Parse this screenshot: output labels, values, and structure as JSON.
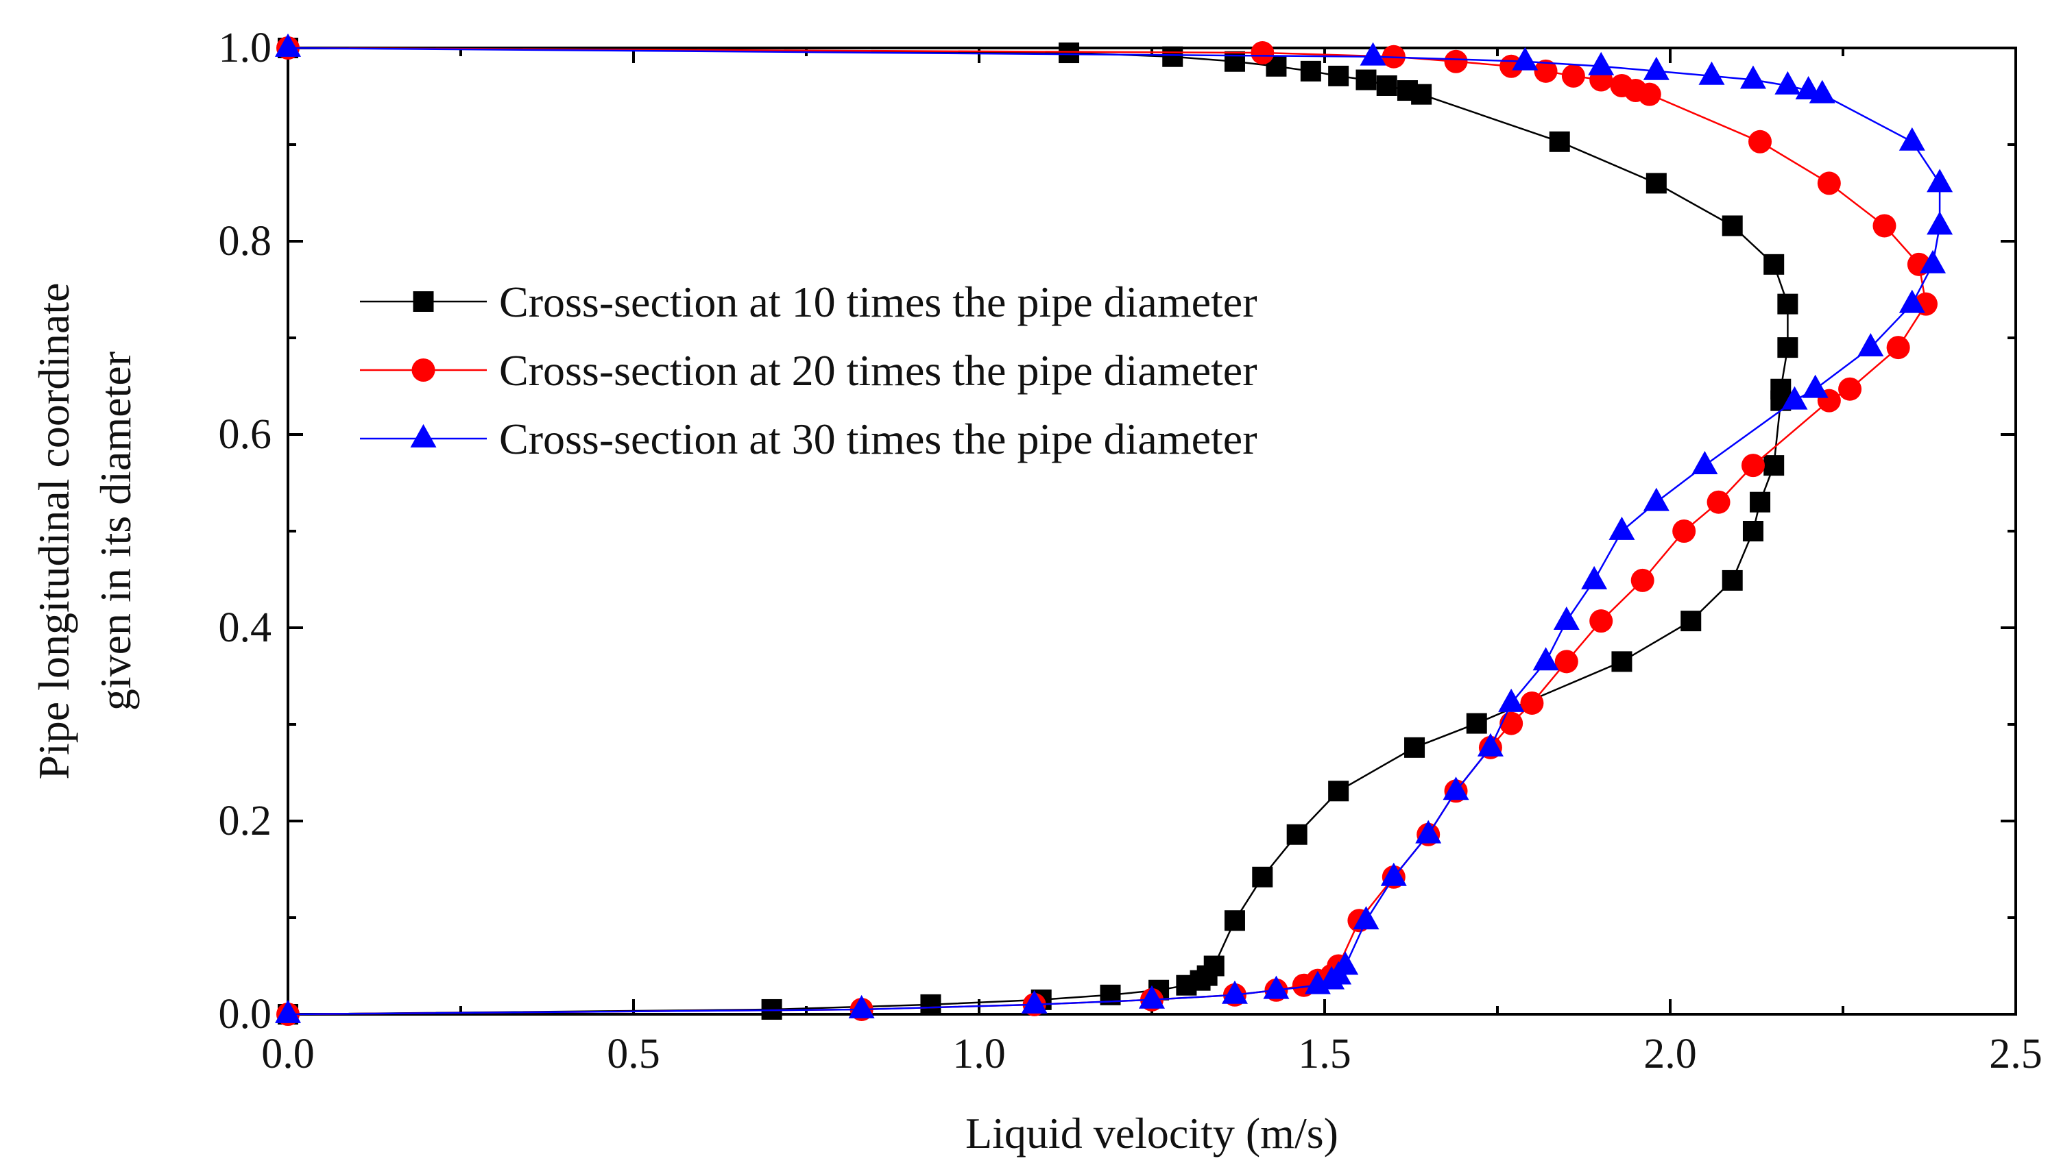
{
  "chart_data": {
    "type": "line",
    "title": "",
    "xlabel": "Liquid velocity (m/s)",
    "ylabel_lines": [
      "Pipe longitudinal coordinate",
      "given in its diameter"
    ],
    "xlim": [
      0.0,
      2.5
    ],
    "ylim": [
      0.0,
      1.0
    ],
    "x_ticks": [
      "0.0",
      "0.5",
      "1.0",
      "1.5",
      "2.0",
      "2.5"
    ],
    "y_ticks": [
      "0.0",
      "0.2",
      "0.4",
      "0.6",
      "0.8",
      "1.0"
    ],
    "grid": false,
    "legend_position": "upper-left",
    "series": [
      {
        "name": "Cross-section at 10 times the pipe diameter",
        "color": "#000000",
        "marker": "square",
        "x": [
          0.0,
          0.7,
          0.93,
          1.09,
          1.19,
          1.26,
          1.3,
          1.32,
          1.33,
          1.34,
          1.37,
          1.41,
          1.46,
          1.52,
          1.63,
          1.72,
          1.93,
          2.03,
          2.09,
          2.12,
          2.13,
          2.15,
          2.16,
          2.16,
          2.17,
          2.17,
          2.15,
          2.09,
          1.98,
          1.84,
          1.64,
          1.62,
          1.59,
          1.56,
          1.52,
          1.48,
          1.43,
          1.37,
          1.28,
          1.13,
          0.0
        ],
        "y": [
          0.0,
          0.005,
          0.01,
          0.015,
          0.02,
          0.025,
          0.03,
          0.035,
          0.04,
          0.05,
          0.097,
          0.142,
          0.186,
          0.231,
          0.276,
          0.301,
          0.365,
          0.407,
          0.449,
          0.5,
          0.53,
          0.568,
          0.635,
          0.647,
          0.69,
          0.735,
          0.776,
          0.816,
          0.86,
          0.903,
          0.952,
          0.956,
          0.961,
          0.967,
          0.971,
          0.976,
          0.981,
          0.986,
          0.991,
          0.995,
          1.0
        ]
      },
      {
        "name": "Cross-section at 20 times the pipe diameter",
        "color": "#ff0000",
        "marker": "circle",
        "x": [
          0.0,
          0.83,
          1.08,
          1.25,
          1.37,
          1.43,
          1.47,
          1.49,
          1.51,
          1.52,
          1.55,
          1.6,
          1.65,
          1.69,
          1.74,
          1.77,
          1.8,
          1.85,
          1.9,
          1.96,
          2.02,
          2.07,
          2.12,
          2.23,
          2.26,
          2.33,
          2.37,
          2.36,
          2.31,
          2.23,
          2.13,
          1.97,
          1.95,
          1.93,
          1.9,
          1.86,
          1.82,
          1.77,
          1.69,
          1.6,
          1.41,
          0.0
        ],
        "y": [
          0.0,
          0.005,
          0.01,
          0.015,
          0.02,
          0.025,
          0.03,
          0.035,
          0.04,
          0.05,
          0.097,
          0.142,
          0.186,
          0.231,
          0.276,
          0.301,
          0.322,
          0.365,
          0.407,
          0.449,
          0.5,
          0.53,
          0.568,
          0.635,
          0.647,
          0.69,
          0.735,
          0.776,
          0.816,
          0.86,
          0.903,
          0.952,
          0.956,
          0.961,
          0.967,
          0.971,
          0.976,
          0.981,
          0.986,
          0.991,
          0.995,
          1.0
        ]
      },
      {
        "name": "Cross-section at 30 times the pipe diameter",
        "color": "#0000ff",
        "marker": "triangle",
        "x": [
          0.0,
          0.83,
          1.08,
          1.25,
          1.37,
          1.43,
          1.49,
          1.51,
          1.52,
          1.53,
          1.56,
          1.6,
          1.65,
          1.69,
          1.74,
          1.77,
          1.82,
          1.85,
          1.89,
          1.93,
          1.98,
          2.05,
          2.18,
          2.21,
          2.29,
          2.35,
          2.38,
          2.39,
          2.39,
          2.35,
          2.22,
          2.2,
          2.17,
          2.12,
          2.06,
          1.98,
          1.9,
          1.79,
          1.57,
          0.0
        ],
        "y": [
          0.0,
          0.005,
          0.01,
          0.015,
          0.02,
          0.025,
          0.03,
          0.035,
          0.04,
          0.05,
          0.097,
          0.142,
          0.186,
          0.231,
          0.276,
          0.322,
          0.365,
          0.407,
          0.449,
          0.5,
          0.53,
          0.568,
          0.635,
          0.647,
          0.69,
          0.735,
          0.776,
          0.816,
          0.86,
          0.903,
          0.952,
          0.956,
          0.961,
          0.967,
          0.971,
          0.976,
          0.981,
          0.986,
          0.991,
          1.0
        ]
      }
    ]
  }
}
